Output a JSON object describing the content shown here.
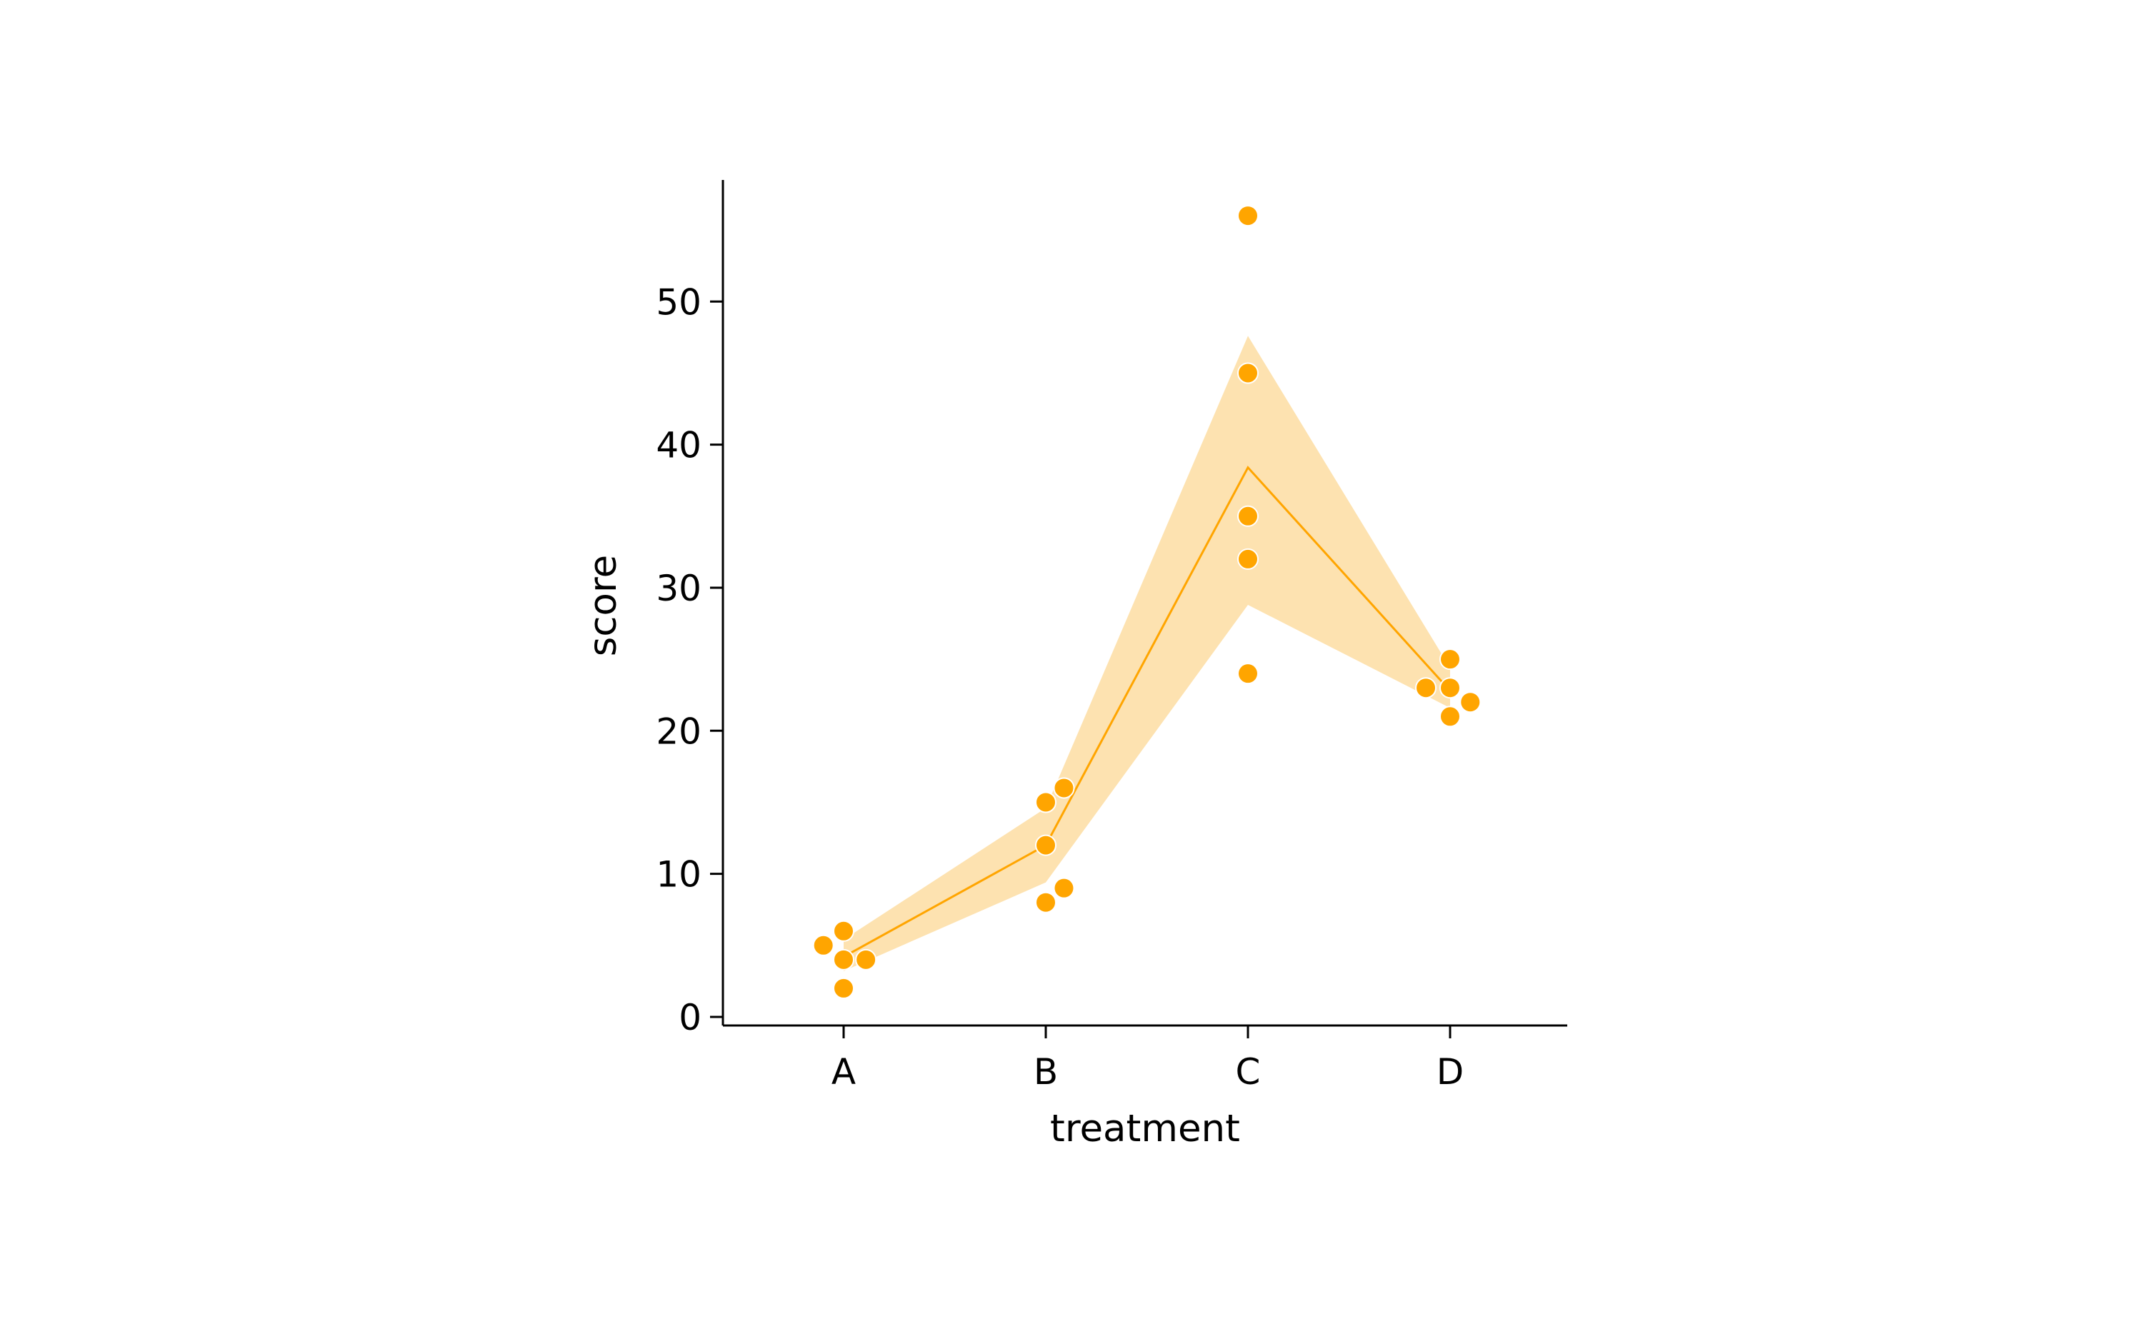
{
  "chart_data": {
    "type": "scatter",
    "xlabel": "treatment",
    "ylabel": "score",
    "categories": [
      "A",
      "B",
      "C",
      "D"
    ],
    "ylim": [
      -0.6,
      58.5
    ],
    "yticks": [
      0,
      10,
      20,
      30,
      40,
      50
    ],
    "grid": false,
    "points": [
      {
        "x": "A",
        "y": 5,
        "jitter": -0.1
      },
      {
        "x": "A",
        "y": 6,
        "jitter": 0
      },
      {
        "x": "A",
        "y": 4,
        "jitter": 0
      },
      {
        "x": "A",
        "y": 4,
        "jitter": 0.11
      },
      {
        "x": "A",
        "y": 2,
        "jitter": 0
      },
      {
        "x": "B",
        "y": 16,
        "jitter": 0.09
      },
      {
        "x": "B",
        "y": 15,
        "jitter": 0
      },
      {
        "x": "B",
        "y": 12,
        "jitter": 0
      },
      {
        "x": "B",
        "y": 9,
        "jitter": 0.09
      },
      {
        "x": "B",
        "y": 8,
        "jitter": 0
      },
      {
        "x": "C",
        "y": 56,
        "jitter": 0
      },
      {
        "x": "C",
        "y": 45,
        "jitter": 0
      },
      {
        "x": "C",
        "y": 35,
        "jitter": 0
      },
      {
        "x": "C",
        "y": 32,
        "jitter": 0
      },
      {
        "x": "C",
        "y": 24,
        "jitter": 0
      },
      {
        "x": "D",
        "y": 25,
        "jitter": 0
      },
      {
        "x": "D",
        "y": 23,
        "jitter": -0.12
      },
      {
        "x": "D",
        "y": 23,
        "jitter": 0
      },
      {
        "x": "D",
        "y": 22,
        "jitter": 0.1
      },
      {
        "x": "D",
        "y": 21,
        "jitter": 0
      }
    ],
    "mean_line": {
      "x": [
        "A",
        "B",
        "C",
        "D"
      ],
      "y": [
        4.2,
        12.0,
        38.4,
        22.8
      ]
    },
    "confidence_band": {
      "x": [
        "A",
        "B",
        "C",
        "D"
      ],
      "lower": [
        3.2,
        9.4,
        28.8,
        21.6
      ],
      "upper": [
        5.4,
        14.6,
        47.6,
        24.4
      ]
    },
    "colors": {
      "points": "#FFA500",
      "line": "#FFA500",
      "band": "#FDE2B0",
      "axis": "#000000"
    }
  }
}
